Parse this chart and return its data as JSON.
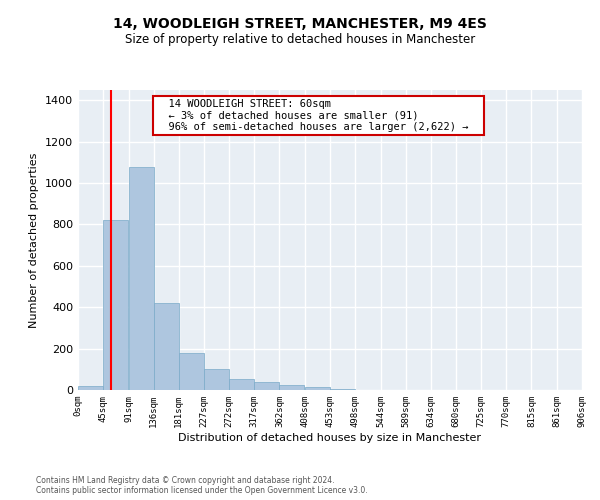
{
  "title1": "14, WOODLEIGH STREET, MANCHESTER, M9 4ES",
  "title2": "Size of property relative to detached houses in Manchester",
  "xlabel": "Distribution of detached houses by size in Manchester",
  "ylabel": "Number of detached properties",
  "annotation_line1": "14 WOODLEIGH STREET: 60sqm",
  "annotation_line2": "← 3% of detached houses are smaller (91)",
  "annotation_line3": "96% of semi-detached houses are larger (2,622) →",
  "property_line_x": 60,
  "bar_color": "#aec6df",
  "bar_edge_color": "#7aaac8",
  "annotation_box_color": "#ffffff",
  "annotation_border_color": "#cc0000",
  "fig_background_color": "#ffffff",
  "plot_background_color": "#e8eef4",
  "grid_color": "#ffffff",
  "bins": [
    0,
    45,
    91,
    136,
    181,
    227,
    272,
    317,
    362,
    408,
    453,
    498,
    544,
    589,
    634,
    680,
    725,
    770,
    815,
    861,
    906
  ],
  "bin_labels": [
    "0sqm",
    "45sqm",
    "91sqm",
    "136sqm",
    "181sqm",
    "227sqm",
    "272sqm",
    "317sqm",
    "362sqm",
    "408sqm",
    "453sqm",
    "498sqm",
    "544sqm",
    "589sqm",
    "634sqm",
    "680sqm",
    "725sqm",
    "770sqm",
    "815sqm",
    "861sqm",
    "906sqm"
  ],
  "bar_heights": [
    20,
    820,
    1080,
    420,
    180,
    100,
    55,
    40,
    25,
    15,
    5,
    2,
    1,
    0,
    0,
    0,
    0,
    0,
    0,
    0
  ],
  "ylim": [
    0,
    1450
  ],
  "yticks": [
    0,
    200,
    400,
    600,
    800,
    1000,
    1200,
    1400
  ],
  "footer_line1": "Contains HM Land Registry data © Crown copyright and database right 2024.",
  "footer_line2": "Contains public sector information licensed under the Open Government Licence v3.0."
}
